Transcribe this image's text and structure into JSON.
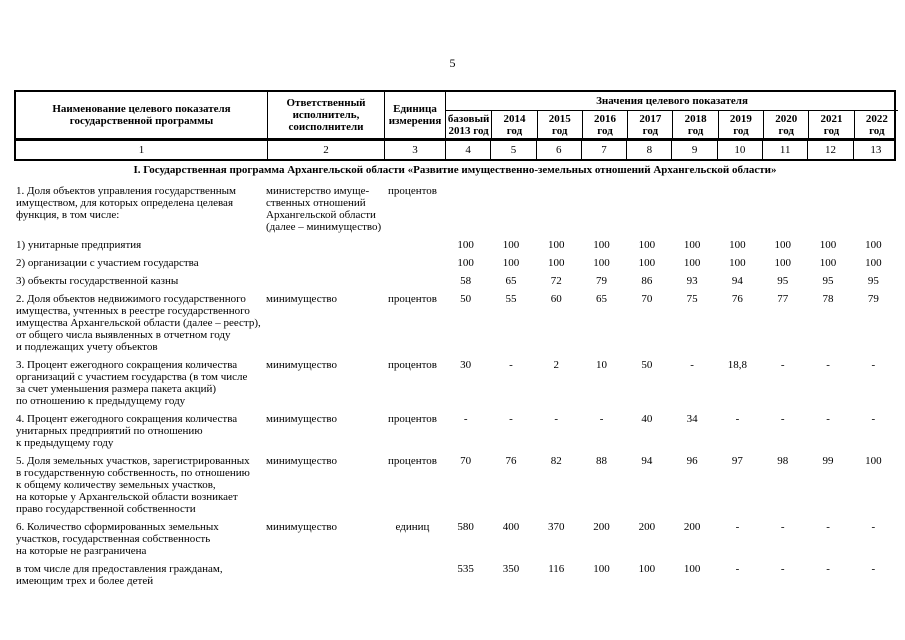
{
  "page": {
    "number": "5"
  },
  "table": {
    "header": {
      "col1": "Наименование целевого показателя\nгосударственной программы",
      "col2": "Ответственный\nисполнитель,\nсоисполнители",
      "col3": "Единица\nизмерения",
      "values_group": "Значения целевого показателя",
      "year_columns": [
        "базовый\n2013 год",
        "2014\nгод",
        "2015\nгод",
        "2016\nгод",
        "2017\nгод",
        "2018\nгод",
        "2019\nгод",
        "2020\nгод",
        "2021\nгод",
        "2022\nгод"
      ],
      "column_numbers": [
        "1",
        "2",
        "3",
        "4",
        "5",
        "6",
        "7",
        "8",
        "9",
        "10",
        "11",
        "12",
        "13"
      ]
    },
    "section_title": "I. Государственная программа Архангельской области «Развитие имущественно-земельных отношений Архангельской области»",
    "rows": [
      {
        "name": "1. Доля объектов управления государственным\nимуществом, для которых определена целевая\nфункция, в том числе:",
        "executor": "министерство имуще-\nственных отношений\nАрхангельской области\n(далее – минимущество)",
        "unit": "процентов",
        "values": [
          "",
          "",
          "",
          "",
          "",
          "",
          "",
          "",
          "",
          ""
        ]
      },
      {
        "name": "1) унитарные предприятия",
        "executor": "",
        "unit": "",
        "values": [
          "100",
          "100",
          "100",
          "100",
          "100",
          "100",
          "100",
          "100",
          "100",
          "100"
        ]
      },
      {
        "name": "2) организации с участием государства",
        "executor": "",
        "unit": "",
        "values": [
          "100",
          "100",
          "100",
          "100",
          "100",
          "100",
          "100",
          "100",
          "100",
          "100"
        ]
      },
      {
        "name": "3) объекты государственной казны",
        "executor": "",
        "unit": "",
        "values": [
          "58",
          "65",
          "72",
          "79",
          "86",
          "93",
          "94",
          "95",
          "95",
          "95"
        ]
      },
      {
        "name": "2. Доля объектов недвижимого государственного\nимущества, учтенных в реестре государственного\nимущества Архангельской области (далее – реестр),\nот общего числа выявленных в отчетном году\nи подлежащих учету объектов",
        "executor": "минимущество",
        "unit": "процентов",
        "values": [
          "50",
          "55",
          "60",
          "65",
          "70",
          "75",
          "76",
          "77",
          "78",
          "79"
        ]
      },
      {
        "name": "3. Процент ежегодного сокращения количества\nорганизаций с участием государства (в том числе\nза счет уменьшения размера пакета акций)\nпо отношению к предыдущему году",
        "executor": "минимущество",
        "unit": "процентов",
        "values": [
          "30",
          "-",
          "2",
          "10",
          "50",
          "-",
          "18,8",
          "-",
          "-",
          "-"
        ]
      },
      {
        "name": "4. Процент ежегодного сокращения количества\nунитарных предприятий по отношению\nк предыдущему году",
        "executor": "минимущество",
        "unit": "процентов",
        "values": [
          "-",
          "-",
          "-",
          "-",
          "40",
          "34",
          "-",
          "-",
          "-",
          "-"
        ]
      },
      {
        "name": "5. Доля земельных участков, зарегистрированных\nв государственную собственность, по отношению\nк общему количеству земельных участков,\nна которые у Архангельской области возникает\nправо государственной собственности",
        "executor": "минимущество",
        "unit": "процентов",
        "values": [
          "70",
          "76",
          "82",
          "88",
          "94",
          "96",
          "97",
          "98",
          "99",
          "100"
        ]
      },
      {
        "name": "6. Количество сформированных земельных\nучастков, государственная собственность\nна которые не разграничена",
        "executor": "минимущество",
        "unit": "единиц",
        "values": [
          "580",
          "400",
          "370",
          "200",
          "200",
          "200",
          "-",
          "-",
          "-",
          "-"
        ]
      },
      {
        "name": "в том числе для предоставления гражданам,\nимеющим трех и более детей",
        "executor": "",
        "unit": "",
        "values": [
          "535",
          "350",
          "116",
          "100",
          "100",
          "100",
          "-",
          "-",
          "-",
          "-"
        ]
      }
    ]
  }
}
